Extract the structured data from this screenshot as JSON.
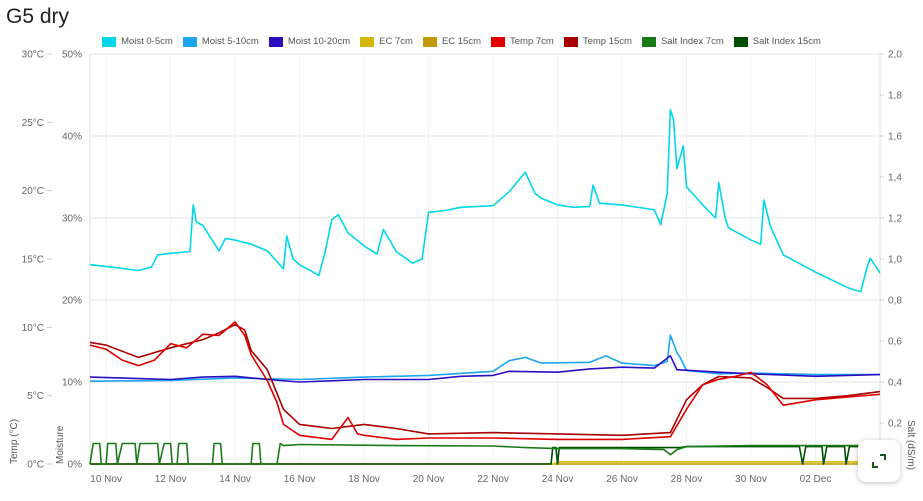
{
  "title": "G5 dry",
  "expand_button": {
    "icon": "expand-icon"
  },
  "chart_data": {
    "type": "line",
    "title": "G5 dry",
    "x_unit": "days since 10 Nov",
    "xlim": [
      -0.5,
      24
    ],
    "x_ticks": [
      {
        "d": 0,
        "label": "10 Nov"
      },
      {
        "d": 2,
        "label": "12 Nov"
      },
      {
        "d": 4,
        "label": "14 Nov"
      },
      {
        "d": 6,
        "label": "16 Nov"
      },
      {
        "d": 8,
        "label": "18 Nov"
      },
      {
        "d": 10,
        "label": "20 Nov"
      },
      {
        "d": 12,
        "label": "22 Nov"
      },
      {
        "d": 14,
        "label": "24 Nov"
      },
      {
        "d": 16,
        "label": "26 Nov"
      },
      {
        "d": 18,
        "label": "28 Nov"
      },
      {
        "d": 20,
        "label": "30 Nov"
      },
      {
        "d": 22,
        "label": "02 Dec"
      },
      {
        "d": 24,
        "label": "04"
      }
    ],
    "axes": {
      "temp": {
        "label": "Temp (°C)",
        "ylim": [
          0,
          30
        ],
        "ticks": [
          {
            "v": 0,
            "label": "0°C"
          },
          {
            "v": 5,
            "label": "5°C"
          },
          {
            "v": 10,
            "label": "10°C"
          },
          {
            "v": 15,
            "label": "15°C"
          },
          {
            "v": 20,
            "label": "20°C"
          },
          {
            "v": 25,
            "label": "25°C"
          },
          {
            "v": 30,
            "label": "30°C"
          }
        ]
      },
      "moist": {
        "label": "Moisture",
        "ylim": [
          0,
          50
        ],
        "ticks": [
          {
            "v": 0,
            "label": "0%"
          },
          {
            "v": 10,
            "label": "10%"
          },
          {
            "v": 20,
            "label": "20%"
          },
          {
            "v": 30,
            "label": "30%"
          },
          {
            "v": 40,
            "label": "40%"
          },
          {
            "v": 50,
            "label": "50%"
          }
        ]
      },
      "salt": {
        "label": "Salt (dS/m)",
        "ylim": [
          0,
          2
        ],
        "ticks": [
          {
            "v": 0,
            "label": "0"
          },
          {
            "v": 0.2,
            "label": "0,2"
          },
          {
            "v": 0.4,
            "label": "0,4"
          },
          {
            "v": 0.6,
            "label": "0,6"
          },
          {
            "v": 0.8,
            "label": "0,8"
          },
          {
            "v": 1.0,
            "label": "1,0"
          },
          {
            "v": 1.2,
            "label": "1,2"
          },
          {
            "v": 1.4,
            "label": "1,4"
          },
          {
            "v": 1.6,
            "label": "1,6"
          },
          {
            "v": 1.8,
            "label": "1,8"
          },
          {
            "v": 2.0,
            "label": "2,0"
          }
        ]
      }
    },
    "legend_position": "top-center",
    "series": [
      {
        "name": "Moist 0-5cm",
        "axis": "moist",
        "color": "#00d8e8",
        "points": [
          [
            -0.5,
            24.3
          ],
          [
            0,
            24.1
          ],
          [
            1,
            23.6
          ],
          [
            1.4,
            24
          ],
          [
            1.6,
            25.5
          ],
          [
            2,
            25.7
          ],
          [
            2.6,
            25.9
          ],
          [
            2.7,
            31.6
          ],
          [
            2.8,
            29.5
          ],
          [
            3,
            29.1
          ],
          [
            3.5,
            26
          ],
          [
            3.7,
            27.5
          ],
          [
            4,
            27.3
          ],
          [
            4.5,
            26.8
          ],
          [
            5,
            26
          ],
          [
            5.5,
            23.8
          ],
          [
            5.6,
            27.8
          ],
          [
            5.8,
            25
          ],
          [
            6,
            24.3
          ],
          [
            6.6,
            23
          ],
          [
            6.8,
            26
          ],
          [
            7,
            29.8
          ],
          [
            7.2,
            30.4
          ],
          [
            7.5,
            28.2
          ],
          [
            8,
            26.6
          ],
          [
            8.4,
            25.6
          ],
          [
            8.6,
            28.6
          ],
          [
            9,
            25.9
          ],
          [
            9.5,
            24.5
          ],
          [
            9.8,
            25
          ],
          [
            10,
            30.7
          ],
          [
            10.5,
            30.9
          ],
          [
            11,
            31.3
          ],
          [
            12,
            31.5
          ],
          [
            12.5,
            33.2
          ],
          [
            13,
            35.6
          ],
          [
            13.3,
            33
          ],
          [
            13.5,
            32.4
          ],
          [
            14,
            31.6
          ],
          [
            14.5,
            31.3
          ],
          [
            15,
            31.4
          ],
          [
            15.1,
            34
          ],
          [
            15.3,
            31.8
          ],
          [
            16,
            31.6
          ],
          [
            17,
            31
          ],
          [
            17.2,
            29.2
          ],
          [
            17.4,
            33
          ],
          [
            17.5,
            43.2
          ],
          [
            17.6,
            42
          ],
          [
            17.7,
            36
          ],
          [
            17.9,
            38.8
          ],
          [
            18,
            33.8
          ],
          [
            18.5,
            31.6
          ],
          [
            18.9,
            30
          ],
          [
            19,
            34.3
          ],
          [
            19.2,
            30
          ],
          [
            19.3,
            28.8
          ],
          [
            20,
            27.3
          ],
          [
            20.3,
            26.8
          ],
          [
            20.4,
            32.2
          ],
          [
            20.6,
            29
          ],
          [
            21,
            25.5
          ],
          [
            22,
            23.4
          ],
          [
            23,
            21.5
          ],
          [
            23.4,
            21
          ],
          [
            23.6,
            24
          ],
          [
            23.7,
            25.1
          ],
          [
            24,
            23.3
          ]
        ]
      },
      {
        "name": "Moist 5-10cm",
        "axis": "moist",
        "color": "#1ea5f0",
        "points": [
          [
            -0.5,
            10.1
          ],
          [
            2,
            10.2
          ],
          [
            4,
            10.5
          ],
          [
            6,
            10.3
          ],
          [
            8,
            10.6
          ],
          [
            10,
            10.8
          ],
          [
            12,
            11.3
          ],
          [
            12.5,
            12.6
          ],
          [
            13,
            13
          ],
          [
            13.5,
            12.3
          ],
          [
            15,
            12.4
          ],
          [
            15.5,
            13.2
          ],
          [
            16,
            12.3
          ],
          [
            17,
            12
          ],
          [
            17.4,
            12.5
          ],
          [
            17.5,
            15.7
          ],
          [
            17.7,
            13.6
          ],
          [
            17.8,
            13
          ],
          [
            18,
            11.4
          ],
          [
            19,
            11
          ],
          [
            20,
            11.1
          ],
          [
            22,
            10.9
          ],
          [
            24,
            10.9
          ]
        ]
      },
      {
        "name": "Moist 10-20cm",
        "axis": "moist",
        "color": "#2a0fc0",
        "points": [
          [
            -0.5,
            10.6
          ],
          [
            2,
            10.3
          ],
          [
            3,
            10.6
          ],
          [
            4,
            10.7
          ],
          [
            5,
            10.3
          ],
          [
            6,
            10
          ],
          [
            8,
            10.3
          ],
          [
            10,
            10.3
          ],
          [
            11,
            10.7
          ],
          [
            12,
            10.8
          ],
          [
            12.5,
            11.3
          ],
          [
            14,
            11.2
          ],
          [
            15,
            11.6
          ],
          [
            16,
            11.8
          ],
          [
            17,
            11.7
          ],
          [
            17.5,
            13.2
          ],
          [
            17.7,
            11.5
          ],
          [
            19,
            11.2
          ],
          [
            20,
            11
          ],
          [
            22,
            10.7
          ],
          [
            24,
            10.9
          ]
        ]
      },
      {
        "name": "EC 7cm",
        "axis": "salt",
        "color": "#d4b800",
        "points": [
          [
            -0.5,
            0.0
          ],
          [
            13.9,
            0.0
          ],
          [
            14,
            0.01
          ],
          [
            24,
            0.01
          ]
        ]
      },
      {
        "name": "EC 15cm",
        "axis": "salt",
        "color": "#c09a00",
        "points": [
          [
            -0.5,
            0.0
          ],
          [
            24,
            0.0
          ]
        ]
      },
      {
        "name": "Temp 7cm",
        "axis": "temp",
        "color": "#e00000",
        "points": [
          [
            -0.5,
            8.7
          ],
          [
            0,
            8.4
          ],
          [
            0.5,
            7.6
          ],
          [
            1,
            7.2
          ],
          [
            1.5,
            7.6
          ],
          [
            2,
            8.8
          ],
          [
            2.5,
            8.5
          ],
          [
            3,
            9.5
          ],
          [
            3.5,
            9.4
          ],
          [
            4,
            10.4
          ],
          [
            4.3,
            9.4
          ],
          [
            4.5,
            8
          ],
          [
            5,
            6.1
          ],
          [
            5.3,
            4.5
          ],
          [
            5.5,
            2.9
          ],
          [
            6,
            2.1
          ],
          [
            7,
            1.8
          ],
          [
            7.5,
            3.4
          ],
          [
            7.8,
            2.2
          ],
          [
            8,
            2.1
          ],
          [
            9,
            1.8
          ],
          [
            10,
            1.9
          ],
          [
            12,
            1.9
          ],
          [
            14,
            1.8
          ],
          [
            16,
            1.8
          ],
          [
            17.5,
            2.0
          ],
          [
            18,
            4.0
          ],
          [
            18.5,
            5.8
          ],
          [
            19,
            6.2
          ],
          [
            19.5,
            6.4
          ],
          [
            20,
            6.7
          ],
          [
            20.5,
            5.8
          ],
          [
            21,
            4.3
          ],
          [
            22,
            4.7
          ],
          [
            23,
            4.9
          ],
          [
            24,
            5.1
          ]
        ]
      },
      {
        "name": "Temp 15cm",
        "axis": "temp",
        "color": "#a80000",
        "points": [
          [
            -0.5,
            8.9
          ],
          [
            0,
            8.7
          ],
          [
            1,
            7.8
          ],
          [
            2,
            8.5
          ],
          [
            3,
            9.1
          ],
          [
            3.5,
            9.6
          ],
          [
            4,
            10.2
          ],
          [
            4.3,
            9.8
          ],
          [
            4.5,
            8.3
          ],
          [
            5,
            6.9
          ],
          [
            5.5,
            4
          ],
          [
            6,
            2.9
          ],
          [
            7,
            2.6
          ],
          [
            8,
            2.9
          ],
          [
            9,
            2.6
          ],
          [
            10,
            2.2
          ],
          [
            12,
            2.3
          ],
          [
            14,
            2.2
          ],
          [
            16,
            2.1
          ],
          [
            17.5,
            2.3
          ],
          [
            18,
            4.7
          ],
          [
            18.5,
            5.8
          ],
          [
            19,
            6.4
          ],
          [
            20,
            6.3
          ],
          [
            20.5,
            5.6
          ],
          [
            21,
            4.8
          ],
          [
            22,
            4.8
          ],
          [
            23,
            5.0
          ],
          [
            24,
            5.3
          ]
        ]
      },
      {
        "name": "Salt Index 7cm",
        "axis": "salt",
        "color": "#1a7a1a",
        "points": [
          [
            -0.5,
            0
          ],
          [
            -0.4,
            0.1
          ],
          [
            -0.2,
            0.1
          ],
          [
            -0.15,
            0
          ],
          [
            0,
            0
          ],
          [
            0.05,
            0.1
          ],
          [
            0.3,
            0.1
          ],
          [
            0.35,
            0
          ],
          [
            0.5,
            0.1
          ],
          [
            0.9,
            0.1
          ],
          [
            0.95,
            0
          ],
          [
            1.05,
            0.1
          ],
          [
            1.6,
            0.1
          ],
          [
            1.65,
            0
          ],
          [
            1.8,
            0.1
          ],
          [
            2.0,
            0.1
          ],
          [
            2.05,
            0
          ],
          [
            2.2,
            0
          ],
          [
            2.25,
            0.1
          ],
          [
            2.5,
            0.1
          ],
          [
            2.55,
            0
          ],
          [
            3.3,
            0
          ],
          [
            3.35,
            0.1
          ],
          [
            3.55,
            0.1
          ],
          [
            3.6,
            0
          ],
          [
            4.5,
            0
          ],
          [
            4.55,
            0.1
          ],
          [
            4.75,
            0.1
          ],
          [
            4.8,
            0
          ],
          [
            5.3,
            0
          ],
          [
            5.4,
            0.1
          ],
          [
            5.5,
            0.09
          ],
          [
            6,
            0.095
          ],
          [
            9,
            0.09
          ],
          [
            12,
            0.088
          ],
          [
            13,
            0.08
          ],
          [
            14,
            0.075
          ],
          [
            16,
            0.075
          ],
          [
            17.3,
            0.07
          ],
          [
            17.5,
            0.045
          ],
          [
            17.7,
            0.07
          ],
          [
            18,
            0.085
          ],
          [
            20,
            0.09
          ],
          [
            24,
            0.09
          ]
        ]
      },
      {
        "name": "Salt Index 15cm",
        "axis": "salt",
        "color": "#004d00",
        "points": [
          [
            -0.5,
            0
          ],
          [
            13.8,
            0
          ],
          [
            13.85,
            0.08
          ],
          [
            13.95,
            0.08
          ],
          [
            14,
            0
          ],
          [
            14.05,
            0.08
          ],
          [
            17.8,
            0.08
          ],
          [
            18,
            0.085
          ],
          [
            21.5,
            0.085
          ],
          [
            21.6,
            0
          ],
          [
            21.7,
            0.085
          ],
          [
            22.2,
            0.085
          ],
          [
            22.25,
            0
          ],
          [
            22.35,
            0.085
          ],
          [
            22.9,
            0.085
          ],
          [
            22.95,
            0
          ],
          [
            23.05,
            0.085
          ],
          [
            23.6,
            0.085
          ],
          [
            23.65,
            0
          ],
          [
            23.75,
            0.085
          ],
          [
            24,
            0.085
          ]
        ]
      }
    ]
  }
}
